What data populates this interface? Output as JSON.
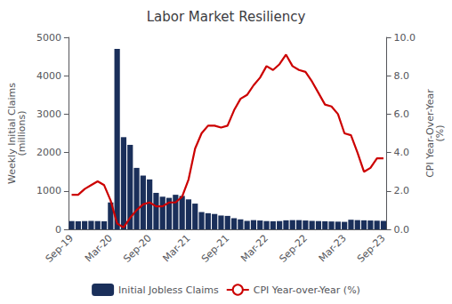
{
  "chart_data": {
    "type": "bar",
    "title": "Labor Market Resiliency",
    "categories": [
      "Sep-19",
      null,
      null,
      null,
      null,
      null,
      "Mar-20",
      null,
      null,
      null,
      null,
      null,
      "Sep-20",
      null,
      null,
      null,
      null,
      null,
      "Mar-21",
      null,
      null,
      null,
      null,
      null,
      "Sep-21",
      null,
      null,
      null,
      null,
      null,
      "Mar-22",
      null,
      null,
      null,
      null,
      null,
      "Sep-22",
      null,
      null,
      null,
      null,
      null,
      "Mar-23",
      null,
      null,
      null,
      null,
      null,
      "Sep-23"
    ],
    "series": [
      {
        "name": "Initial Jobless Claims",
        "type": "bar",
        "color": "#1a2f5a",
        "values": [
          215,
          210,
          215,
          220,
          215,
          210,
          700,
          4700,
          2400,
          2200,
          1600,
          1400,
          1300,
          950,
          850,
          820,
          900,
          870,
          780,
          670,
          450,
          420,
          400,
          360,
          350,
          290,
          260,
          220,
          240,
          230,
          215,
          210,
          215,
          235,
          240,
          240,
          230,
          220,
          215,
          210,
          205,
          200,
          195,
          250,
          240,
          235,
          230,
          225,
          220
        ]
      },
      {
        "name": "CPI Year-over-Year (%)",
        "type": "line",
        "color": "#cc0000",
        "axis": "y2",
        "values": [
          1.8,
          1.8,
          2.1,
          2.3,
          2.5,
          2.3,
          1.5,
          0.3,
          0.1,
          0.6,
          1.0,
          1.3,
          1.4,
          1.2,
          1.2,
          1.4,
          1.4,
          1.7,
          2.6,
          4.2,
          5.0,
          5.4,
          5.4,
          5.3,
          5.4,
          6.2,
          6.8,
          7.0,
          7.5,
          7.9,
          8.5,
          8.3,
          8.6,
          9.1,
          8.5,
          8.3,
          8.2,
          7.7,
          7.1,
          6.5,
          6.4,
          6.0,
          5.0,
          4.9,
          4.0,
          3.0,
          3.2,
          3.7,
          3.7
        ]
      }
    ],
    "ylabel": "Weekly Initial Claims\n(millions)",
    "y2label": "CPI Year-Over-Year\n(%)",
    "ylim": [
      0,
      5000
    ],
    "yticks": [
      0,
      1000,
      2000,
      3000,
      4000,
      5000
    ],
    "y2lim": [
      0.0,
      10.0
    ],
    "y2ticks": [
      {
        "value": 0.0,
        "label": "0.0"
      },
      {
        "value": 2.0,
        "label": "2.0"
      },
      {
        "value": 4.0,
        "label": "4.0"
      },
      {
        "value": 6.0,
        "label": "6.0"
      },
      {
        "value": 8.0,
        "label": "8.0"
      },
      {
        "value": 10.0,
        "label": "10.0"
      }
    ],
    "legend": "bottom",
    "grid": false
  }
}
